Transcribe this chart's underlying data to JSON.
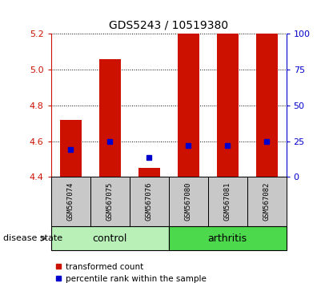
{
  "title": "GDS5243 / 10519380",
  "samples": [
    "GSM567074",
    "GSM567075",
    "GSM567076",
    "GSM567080",
    "GSM567081",
    "GSM567082"
  ],
  "group_colors": {
    "control": "#B8F0B8",
    "arthritis": "#4CD94C"
  },
  "ylim_left": [
    4.4,
    5.2
  ],
  "ylim_right": [
    0,
    100
  ],
  "yticks_left": [
    4.4,
    4.6,
    4.8,
    5.0,
    5.2
  ],
  "yticks_right": [
    0,
    25,
    50,
    75,
    100
  ],
  "bar_bottom": 4.4,
  "bar_values": [
    4.72,
    5.06,
    4.45,
    5.2,
    5.2,
    5.2
  ],
  "percentile_values_left": [
    4.555,
    4.6,
    4.51,
    4.575,
    4.575,
    4.6
  ],
  "bar_color": "#CC1100",
  "percentile_color": "#0000CC",
  "bar_width": 0.55,
  "percentile_marker_size": 5,
  "left_axis_color": "#CC1100",
  "right_axis_color": "#0000CC",
  "sample_box_color": "#C8C8C8",
  "group_label_fontsize": 9,
  "xlabel_arrow_label": "disease state",
  "legend_items": [
    "transformed count",
    "percentile rank within the sample"
  ],
  "group_positions": {
    "control": [
      0,
      1,
      2
    ],
    "arthritis": [
      3,
      4,
      5
    ]
  }
}
